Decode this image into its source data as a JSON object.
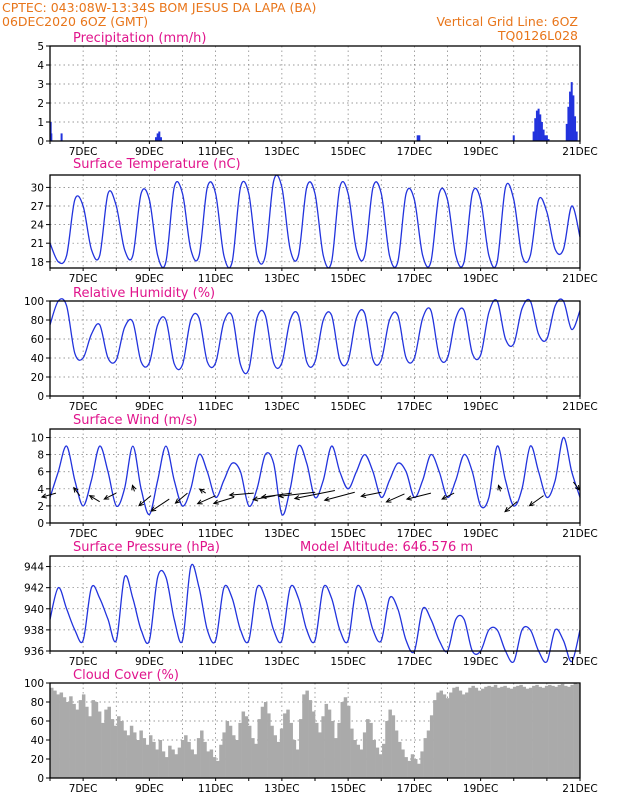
{
  "header": {
    "left1": "CPTEC:   043:08W-13:34S   BOM JESUS DA LAPA (BA)",
    "left2": "06DEC2020 6OZ (GMT)",
    "right1": "Vertical Grid Line: 6OZ",
    "right2": "TQ0126L028"
  },
  "colors": {
    "line": "#2233dd",
    "title": "#e0148c",
    "header": "#e8751a",
    "cloud": "#aaaaaa"
  },
  "x_ticks": [
    "7DEC",
    "9DEC",
    "11DEC",
    "13DEC",
    "15DEC",
    "17DEC",
    "19DEC",
    "21DEC"
  ],
  "chart_data": [
    {
      "id": "precip",
      "type": "bar",
      "title": "Precipitation (mm/h)",
      "ylim": [
        0,
        5
      ],
      "yticks": [
        0,
        1,
        2,
        3,
        4,
        5
      ],
      "x_unit": "days since 06DEC 06Z",
      "x": [
        0.02,
        0.04,
        0.35,
        3.2,
        3.25,
        3.3,
        3.35,
        11.1,
        11.15,
        14.0,
        14.6,
        14.65,
        14.7,
        14.75,
        14.8,
        14.85,
        14.9,
        14.95,
        15.0,
        15.05,
        15.6,
        15.65,
        15.7,
        15.75,
        15.8,
        15.85,
        15.9
      ],
      "values": [
        1.0,
        0.4,
        0.4,
        0.2,
        0.4,
        0.5,
        0.2,
        0.3,
        0.3,
        0.3,
        0.5,
        1.2,
        1.6,
        1.7,
        1.4,
        1.0,
        0.6,
        0.3,
        0.3,
        0.1,
        0.9,
        1.8,
        2.6,
        3.1,
        2.4,
        1.3,
        0.5
      ]
    },
    {
      "id": "temp",
      "type": "line",
      "title": "Surface Temperature (nC)",
      "ylim": [
        17,
        32
      ],
      "yticks": [
        18,
        21,
        24,
        27,
        30
      ],
      "x_unit": "days since 06DEC 06Z",
      "x": [
        0,
        0.25,
        0.5,
        0.75,
        1.0,
        1.25,
        1.5,
        1.75,
        2.0,
        2.25,
        2.5,
        2.75,
        3.0,
        3.25,
        3.5,
        3.75,
        4.0,
        4.25,
        4.5,
        4.75,
        5.0,
        5.25,
        5.5,
        5.75,
        6.0,
        6.25,
        6.5,
        6.75,
        7.0,
        7.25,
        7.5,
        7.75,
        8.0,
        8.25,
        8.5,
        8.75,
        9.0,
        9.25,
        9.5,
        9.75,
        10.0,
        10.25,
        10.5,
        10.75,
        11.0,
        11.25,
        11.5,
        11.75,
        12.0,
        12.25,
        12.5,
        12.75,
        13.0,
        13.25,
        13.5,
        13.75,
        14.0,
        14.25,
        14.5,
        14.75,
        15.0,
        15.25,
        15.5,
        15.75,
        16.0
      ],
      "values": [
        21,
        18,
        19,
        28,
        27,
        20,
        19,
        29,
        27,
        20,
        19,
        29,
        28,
        19,
        18,
        30,
        29,
        20,
        19,
        30,
        29,
        19,
        18,
        30,
        29,
        19,
        19,
        31,
        30,
        20,
        19,
        30,
        29,
        19,
        18,
        30,
        29,
        20,
        19,
        30,
        29,
        19,
        18,
        29,
        28,
        19,
        18,
        29,
        28,
        19,
        18,
        29,
        28,
        19,
        18,
        30,
        28,
        19,
        19,
        28,
        26,
        20,
        20,
        27,
        22
      ]
    },
    {
      "id": "rh",
      "type": "line",
      "title": "Relative Humidity (%)",
      "ylim": [
        0,
        100
      ],
      "yticks": [
        0,
        20,
        40,
        60,
        80,
        100
      ],
      "x_unit": "days since 06DEC 06Z",
      "x": [
        0,
        0.25,
        0.5,
        0.75,
        1.0,
        1.25,
        1.5,
        1.75,
        2.0,
        2.25,
        2.5,
        2.75,
        3.0,
        3.25,
        3.5,
        3.75,
        4.0,
        4.25,
        4.5,
        4.75,
        5.0,
        5.25,
        5.5,
        5.75,
        6.0,
        6.25,
        6.5,
        6.75,
        7.0,
        7.25,
        7.5,
        7.75,
        8.0,
        8.25,
        8.5,
        8.75,
        9.0,
        9.25,
        9.5,
        9.75,
        10.0,
        10.25,
        10.5,
        10.75,
        11.0,
        11.25,
        11.5,
        11.75,
        12.0,
        12.25,
        12.5,
        12.75,
        13.0,
        13.25,
        13.5,
        13.75,
        14.0,
        14.25,
        14.5,
        14.75,
        15.0,
        15.25,
        15.5,
        15.75,
        16.0
      ],
      "values": [
        75,
        100,
        95,
        45,
        40,
        65,
        75,
        40,
        38,
        72,
        78,
        36,
        35,
        75,
        80,
        34,
        33,
        80,
        82,
        36,
        35,
        78,
        84,
        33,
        28,
        82,
        85,
        35,
        35,
        80,
        85,
        36,
        36,
        80,
        85,
        38,
        37,
        82,
        87,
        38,
        38,
        80,
        85,
        40,
        40,
        82,
        90,
        42,
        40,
        82,
        90,
        45,
        43,
        88,
        100,
        60,
        55,
        92,
        100,
        65,
        60,
        95,
        100,
        70,
        90
      ]
    },
    {
      "id": "wind",
      "type": "line",
      "title": "Surface Wind (m/s)",
      "ylim": [
        0,
        11
      ],
      "yticks": [
        0,
        2,
        4,
        6,
        8,
        10
      ],
      "x_unit": "days since 06DEC 06Z",
      "x": [
        0,
        0.25,
        0.5,
        0.75,
        1.0,
        1.25,
        1.5,
        1.75,
        2.0,
        2.25,
        2.5,
        2.75,
        3.0,
        3.25,
        3.5,
        3.75,
        4.0,
        4.25,
        4.5,
        4.75,
        5.0,
        5.25,
        5.5,
        5.75,
        6.0,
        6.25,
        6.5,
        6.75,
        7.0,
        7.25,
        7.5,
        7.75,
        8.0,
        8.25,
        8.5,
        8.75,
        9.0,
        9.25,
        9.5,
        9.75,
        10.0,
        10.25,
        10.5,
        10.75,
        11.0,
        11.25,
        11.5,
        11.75,
        12.0,
        12.25,
        12.5,
        12.75,
        13.0,
        13.25,
        13.5,
        13.75,
        14.0,
        14.25,
        14.5,
        14.75,
        15.0,
        15.25,
        15.5,
        15.75,
        16.0
      ],
      "values": [
        3,
        6,
        9,
        5,
        2,
        5,
        9,
        6,
        2,
        4,
        9,
        4,
        1,
        5,
        9,
        5,
        2,
        4,
        8,
        6,
        3,
        5,
        7,
        6,
        2,
        4,
        8,
        7,
        1,
        4,
        9,
        7,
        3,
        5,
        9,
        6,
        4,
        6,
        8,
        6,
        3,
        5,
        7,
        6,
        3,
        5,
        8,
        6,
        3,
        5,
        8,
        6,
        2,
        3,
        9,
        5,
        2,
        4,
        9,
        6,
        3,
        5,
        10,
        6,
        3
      ]
    },
    {
      "id": "pres",
      "type": "line",
      "title": "Surface Pressure (hPa)",
      "annotation": "Model Altitude: 646.576 m",
      "ylim": [
        936,
        945
      ],
      "yticks": [
        936,
        938,
        940,
        942,
        944
      ],
      "x_unit": "days since 06DEC 06Z",
      "x": [
        0,
        0.25,
        0.5,
        0.75,
        1.0,
        1.25,
        1.5,
        1.75,
        2.0,
        2.25,
        2.5,
        2.75,
        3.0,
        3.25,
        3.5,
        3.75,
        4.0,
        4.25,
        4.5,
        4.75,
        5.0,
        5.25,
        5.5,
        5.75,
        6.0,
        6.25,
        6.5,
        6.75,
        7.0,
        7.25,
        7.5,
        7.75,
        8.0,
        8.25,
        8.5,
        8.75,
        9.0,
        9.25,
        9.5,
        9.75,
        10.0,
        10.25,
        10.5,
        10.75,
        11.0,
        11.25,
        11.5,
        11.75,
        12.0,
        12.25,
        12.5,
        12.75,
        13.0,
        13.25,
        13.5,
        13.75,
        14.0,
        14.25,
        14.5,
        14.75,
        15.0,
        15.25,
        15.5,
        15.75,
        16.0
      ],
      "values": [
        939,
        942,
        940,
        938,
        937,
        942,
        941,
        939,
        937,
        943,
        941,
        938,
        937,
        943,
        943,
        939,
        937,
        944,
        942,
        938,
        937,
        942,
        941,
        938,
        937,
        942,
        941,
        938,
        937,
        942,
        941,
        938,
        937,
        942,
        941,
        938,
        937,
        942,
        941,
        938,
        937,
        941,
        940,
        937,
        936,
        940,
        939,
        937,
        936,
        939,
        939,
        936,
        936,
        938,
        938,
        936,
        935,
        938,
        938,
        936,
        935,
        938,
        937,
        935,
        938
      ]
    },
    {
      "id": "cloud",
      "type": "bar",
      "title": "Cloud Cover (%)",
      "ylim": [
        0,
        100
      ],
      "yticks": [
        0,
        20,
        40,
        60,
        80,
        100
      ],
      "x_unit": "days since 06DEC 06Z",
      "values": [
        95,
        92,
        88,
        90,
        85,
        80,
        86,
        78,
        72,
        82,
        88,
        75,
        65,
        82,
        80,
        70,
        58,
        72,
        75,
        62,
        55,
        65,
        60,
        50,
        45,
        55,
        48,
        40,
        50,
        42,
        35,
        45,
        38,
        30,
        40,
        28,
        22,
        34,
        30,
        25,
        32,
        40,
        45,
        38,
        30,
        25,
        42,
        50,
        38,
        28,
        30,
        22,
        18,
        35,
        48,
        60,
        55,
        45,
        40,
        58,
        70,
        65,
        55,
        42,
        36,
        62,
        75,
        80,
        68,
        55,
        45,
        38,
        52,
        68,
        72,
        58,
        40,
        30,
        62,
        88,
        92,
        82,
        70,
        58,
        48,
        65,
        78,
        72,
        60,
        42,
        58,
        80,
        85,
        76,
        52,
        40,
        35,
        30,
        48,
        62,
        58,
        40,
        32,
        25,
        36,
        60,
        72,
        66,
        50,
        38,
        30,
        22,
        18,
        25,
        20,
        15,
        28,
        42,
        50,
        66,
        82,
        90,
        92,
        88,
        84,
        90,
        95,
        96,
        92,
        88,
        90,
        95,
        97,
        95,
        92,
        94,
        96,
        97,
        96,
        98,
        95,
        96,
        97,
        95,
        94,
        96,
        97,
        98,
        96,
        94,
        95,
        97,
        98,
        96,
        95,
        97,
        98,
        97,
        96,
        98,
        99,
        97,
        96,
        98,
        100,
        99
      ]
    }
  ],
  "wind_arrows": [
    {
      "x": 0.18,
      "y": 3.5,
      "dx": -14,
      "dy": 4
    },
    {
      "x": 0.9,
      "y": 3.2,
      "dx": -6,
      "dy": -8
    },
    {
      "x": 1.5,
      "y": 2.5,
      "dx": -10,
      "dy": -6
    },
    {
      "x": 2.0,
      "y": 3.5,
      "dx": -12,
      "dy": 6
    },
    {
      "x": 2.55,
      "y": 3.7,
      "dx": -2,
      "dy": -6
    },
    {
      "x": 3.05,
      "y": 3.2,
      "dx": -12,
      "dy": 10
    },
    {
      "x": 3.6,
      "y": 2.8,
      "dx": -18,
      "dy": 12
    },
    {
      "x": 4.15,
      "y": 3.5,
      "dx": -12,
      "dy": 10
    },
    {
      "x": 4.7,
      "y": 3.5,
      "dx": -6,
      "dy": -4
    },
    {
      "x": 5.0,
      "y": 3.2,
      "dx": -18,
      "dy": 8
    },
    {
      "x": 5.55,
      "y": 3.0,
      "dx": -20,
      "dy": 6
    },
    {
      "x": 6.15,
      "y": 3.5,
      "dx": -24,
      "dy": 2
    },
    {
      "x": 6.8,
      "y": 3.2,
      "dx": -22,
      "dy": 4
    },
    {
      "x": 7.3,
      "y": 3.5,
      "dx": -30,
      "dy": 4
    },
    {
      "x": 8.0,
      "y": 3.6,
      "dx": -36,
      "dy": 4
    },
    {
      "x": 8.6,
      "y": 3.8,
      "dx": -40,
      "dy": 8
    },
    {
      "x": 9.2,
      "y": 3.6,
      "dx": -30,
      "dy": 8
    },
    {
      "x": 10.0,
      "y": 3.6,
      "dx": -20,
      "dy": 4
    },
    {
      "x": 10.7,
      "y": 3.4,
      "dx": -18,
      "dy": 8
    },
    {
      "x": 11.5,
      "y": 3.5,
      "dx": -24,
      "dy": 6
    },
    {
      "x": 12.2,
      "y": 3.5,
      "dx": -12,
      "dy": 6
    },
    {
      "x": 13.6,
      "y": 3.7,
      "dx": -2,
      "dy": -6
    },
    {
      "x": 14.1,
      "y": 2.5,
      "dx": -12,
      "dy": 10
    },
    {
      "x": 14.9,
      "y": 3.2,
      "dx": -14,
      "dy": 10
    },
    {
      "x": 15.8,
      "y": 4.8,
      "dx": 6,
      "dy": 8
    }
  ]
}
